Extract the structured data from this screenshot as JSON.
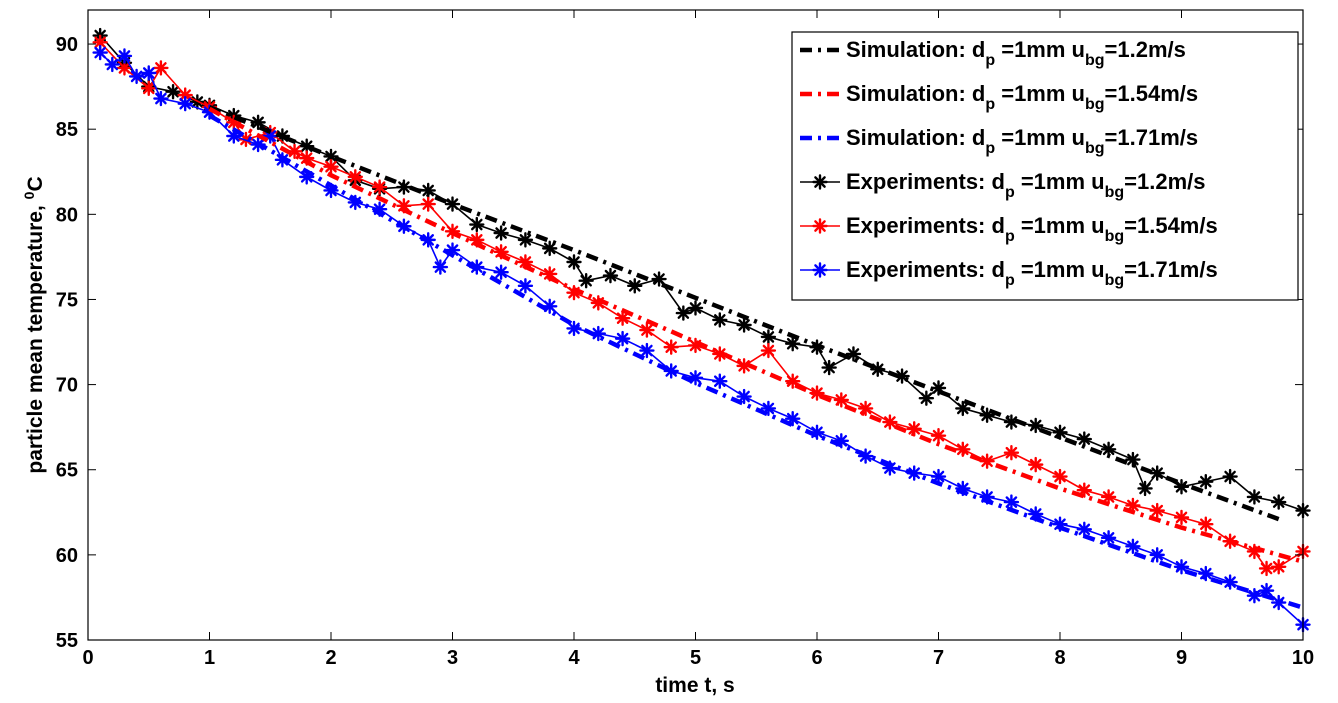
{
  "chart_data": {
    "type": "line",
    "xlabel": "time t, s",
    "ylabel": "particle mean temperature, ",
    "ylabel_sup": "0",
    "ylabel_unit": "C",
    "xlim": [
      0,
      10
    ],
    "ylim": [
      55,
      92
    ],
    "xticks": [
      0,
      1,
      2,
      3,
      4,
      5,
      6,
      7,
      8,
      9,
      10
    ],
    "yticks": [
      55,
      60,
      65,
      70,
      75,
      80,
      85,
      90
    ],
    "grid": false,
    "legend_position": "top-right",
    "series": [
      {
        "name": "Simulation: d_p =1mm u_bg=1.2m/s",
        "legend": {
          "prefix": "Simulation: d",
          "sub1": "p",
          "mid": " =1mm u",
          "sub2": "bg",
          "suffix": "=1.2m/s"
        },
        "kind": "simulation",
        "color": "#000000",
        "style": "dashdot",
        "x": [
          1.0,
          2.0,
          3.0,
          4.0,
          5.0,
          6.0,
          7.0,
          8.0,
          9.0,
          9.8
        ],
        "y": [
          86.3,
          83.4,
          80.6,
          77.9,
          75.1,
          72.3,
          69.6,
          66.9,
          64.2,
          62.1
        ]
      },
      {
        "name": "Simulation: d_p =1mm u_bg=1.54m/s",
        "legend": {
          "prefix": "Simulation: d",
          "sub1": "p",
          "mid": " =1mm u",
          "sub2": "bg",
          "suffix": "=1.54m/s"
        },
        "kind": "simulation",
        "color": "#ff0000",
        "style": "dashdot",
        "x": [
          1.0,
          2.0,
          3.0,
          4.0,
          5.0,
          6.0,
          7.0,
          8.0,
          9.0,
          10.0
        ],
        "y": [
          86.2,
          82.3,
          78.9,
          75.6,
          72.5,
          69.4,
          66.5,
          63.9,
          61.6,
          59.6
        ]
      },
      {
        "name": "Simulation: d_p =1mm u_bg=1.71m/s",
        "legend": {
          "prefix": "Simulation: d",
          "sub1": "p",
          "mid": " =1mm u",
          "sub2": "bg",
          "suffix": "=1.71m/s"
        },
        "kind": "simulation",
        "color": "#0000ff",
        "style": "dashdot",
        "x": [
          1.0,
          2.0,
          3.0,
          4.0,
          5.0,
          6.0,
          7.0,
          8.0,
          9.0,
          10.0
        ],
        "y": [
          85.8,
          81.7,
          77.6,
          73.5,
          70.1,
          67.0,
          64.2,
          61.6,
          59.1,
          56.9
        ]
      },
      {
        "name": "Experiments: d_p =1mm u_bg=1.2m/s",
        "legend": {
          "prefix": "Experiments: d",
          "sub1": "p",
          "mid": " =1mm u",
          "sub2": "bg",
          "suffix": "=1.2m/s"
        },
        "kind": "experiment",
        "color": "#000000",
        "style": "solid-star",
        "x": [
          0.1,
          0.3,
          0.5,
          0.7,
          0.9,
          1.0,
          1.2,
          1.4,
          1.6,
          1.8,
          2.0,
          2.2,
          2.4,
          2.6,
          2.8,
          3.0,
          3.2,
          3.4,
          3.6,
          3.8,
          4.0,
          4.1,
          4.3,
          4.5,
          4.7,
          4.9,
          5.0,
          5.2,
          5.4,
          5.6,
          5.8,
          6.0,
          6.1,
          6.3,
          6.5,
          6.7,
          6.9,
          7.0,
          7.2,
          7.4,
          7.6,
          7.8,
          8.0,
          8.2,
          8.4,
          8.6,
          8.7,
          8.8,
          9.0,
          9.2,
          9.4,
          9.6,
          9.8,
          10.0
        ],
        "y": [
          90.5,
          88.9,
          87.5,
          87.2,
          86.6,
          86.4,
          85.8,
          85.4,
          84.6,
          84.0,
          83.4,
          82.0,
          81.5,
          81.6,
          81.4,
          80.6,
          79.4,
          78.9,
          78.5,
          78.0,
          77.2,
          76.1,
          76.4,
          75.8,
          76.2,
          74.2,
          74.5,
          73.8,
          73.5,
          72.8,
          72.4,
          72.2,
          71.0,
          71.8,
          70.9,
          70.5,
          69.2,
          69.8,
          68.6,
          68.2,
          67.8,
          67.6,
          67.2,
          66.8,
          66.2,
          65.6,
          63.9,
          64.8,
          64.0,
          64.3,
          64.6,
          63.4,
          63.1,
          62.6
        ]
      },
      {
        "name": "Experiments: d_p =1mm u_bg=1.54m/s",
        "legend": {
          "prefix": "Experiments: d",
          "sub1": "p",
          "mid": " =1mm u",
          "sub2": "bg",
          "suffix": "=1.54m/s"
        },
        "kind": "experiment",
        "color": "#ff0000",
        "style": "solid-star",
        "x": [
          0.1,
          0.3,
          0.5,
          0.6,
          0.8,
          1.0,
          1.2,
          1.3,
          1.5,
          1.7,
          1.8,
          2.0,
          2.2,
          2.4,
          2.6,
          2.8,
          3.0,
          3.2,
          3.4,
          3.6,
          3.8,
          4.0,
          4.2,
          4.4,
          4.6,
          4.8,
          5.0,
          5.2,
          5.4,
          5.6,
          5.8,
          6.0,
          6.2,
          6.4,
          6.6,
          6.8,
          7.0,
          7.2,
          7.4,
          7.6,
          7.8,
          8.0,
          8.2,
          8.4,
          8.6,
          8.8,
          9.0,
          9.2,
          9.4,
          9.6,
          9.7,
          9.8,
          10.0
        ],
        "y": [
          90.1,
          88.6,
          87.4,
          88.6,
          87.0,
          86.3,
          85.4,
          84.4,
          84.8,
          83.7,
          83.3,
          82.8,
          82.2,
          81.6,
          80.5,
          80.6,
          79.0,
          78.5,
          77.8,
          77.2,
          76.5,
          75.4,
          74.8,
          73.9,
          73.2,
          72.2,
          72.3,
          71.8,
          71.1,
          72.0,
          70.2,
          69.5,
          69.1,
          68.6,
          67.8,
          67.4,
          67.0,
          66.2,
          65.5,
          66.0,
          65.3,
          64.6,
          63.8,
          63.4,
          62.9,
          62.6,
          62.2,
          61.8,
          60.8,
          60.2,
          59.2,
          59.3,
          60.2
        ]
      },
      {
        "name": "Experiments: d_p =1mm u_bg=1.71m/s",
        "legend": {
          "prefix": "Experiments: d",
          "sub1": "p",
          "mid": " =1mm u",
          "sub2": "bg",
          "suffix": "=1.71m/s"
        },
        "kind": "experiment",
        "color": "#0000ff",
        "style": "solid-star",
        "x": [
          0.1,
          0.2,
          0.3,
          0.4,
          0.5,
          0.6,
          0.8,
          1.0,
          1.2,
          1.4,
          1.5,
          1.6,
          1.8,
          2.0,
          2.2,
          2.4,
          2.6,
          2.8,
          2.9,
          3.0,
          3.2,
          3.4,
          3.6,
          3.8,
          4.0,
          4.2,
          4.4,
          4.6,
          4.8,
          5.0,
          5.2,
          5.4,
          5.6,
          5.8,
          6.0,
          6.2,
          6.4,
          6.6,
          6.8,
          7.0,
          7.2,
          7.4,
          7.6,
          7.8,
          8.0,
          8.2,
          8.4,
          8.6,
          8.8,
          9.0,
          9.2,
          9.4,
          9.6,
          9.7,
          9.8,
          10.0
        ],
        "y": [
          89.5,
          88.8,
          89.3,
          88.1,
          88.3,
          86.8,
          86.5,
          86.0,
          84.6,
          84.1,
          84.6,
          83.2,
          82.2,
          81.4,
          80.7,
          80.3,
          79.3,
          78.5,
          76.9,
          77.9,
          76.9,
          76.6,
          75.8,
          74.6,
          73.3,
          73.0,
          72.7,
          72.0,
          70.8,
          70.4,
          70.2,
          69.3,
          68.6,
          68.0,
          67.2,
          66.7,
          65.8,
          65.1,
          64.8,
          64.6,
          63.9,
          63.4,
          63.1,
          62.4,
          61.8,
          61.5,
          61.0,
          60.5,
          60.0,
          59.3,
          58.9,
          58.4,
          57.6,
          57.9,
          57.2,
          55.9
        ]
      }
    ]
  }
}
